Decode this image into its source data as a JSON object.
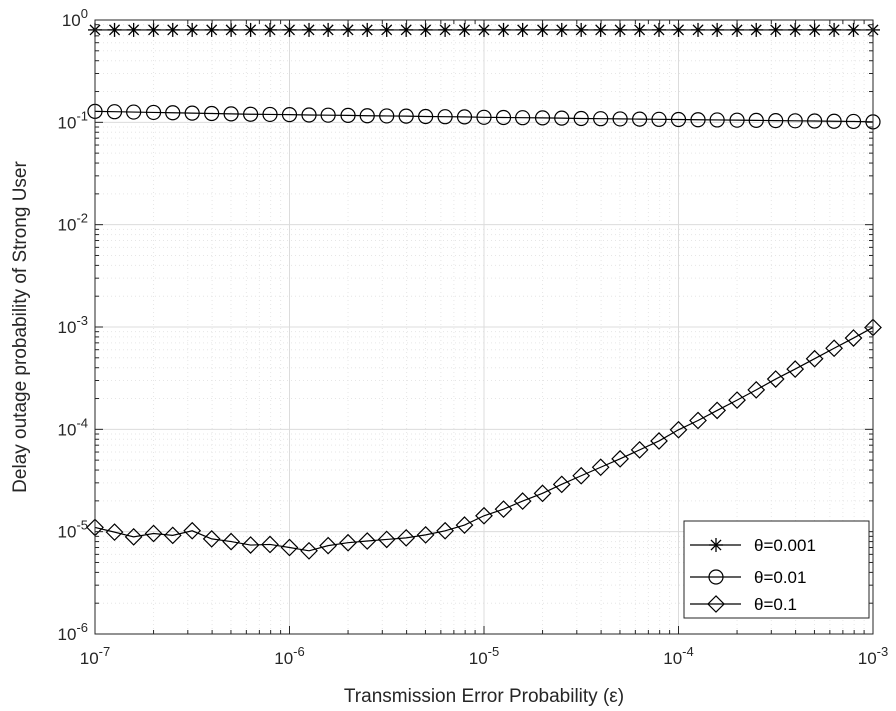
{
  "chart_data": {
    "type": "line",
    "xlabel": "Transmission Error Probability (ε)",
    "ylabel": "Delay outage probability of Strong User",
    "x_scale": "log",
    "y_scale": "log",
    "xlim": [
      1e-07,
      0.001
    ],
    "ylim": [
      1e-06,
      1
    ],
    "grid": true,
    "legend_position": "bottom-right",
    "x_ticks": [
      {
        "base": "10",
        "exp": "-7"
      },
      {
        "base": "10",
        "exp": "-6"
      },
      {
        "base": "10",
        "exp": "-5"
      },
      {
        "base": "10",
        "exp": "-4"
      },
      {
        "base": "10",
        "exp": "-3"
      }
    ],
    "y_ticks": [
      {
        "base": "10",
        "exp": "-6"
      },
      {
        "base": "10",
        "exp": "-5"
      },
      {
        "base": "10",
        "exp": "-4"
      },
      {
        "base": "10",
        "exp": "-3"
      },
      {
        "base": "10",
        "exp": "-2"
      },
      {
        "base": "10",
        "exp": "-1"
      },
      {
        "base": "10",
        "exp": "0"
      }
    ],
    "x": [
      1e-07,
      1.26e-07,
      1.58e-07,
      2e-07,
      2.51e-07,
      3.16e-07,
      3.98e-07,
      5.01e-07,
      6.31e-07,
      7.94e-07,
      1e-06,
      1.26e-06,
      1.58e-06,
      2e-06,
      2.51e-06,
      3.16e-06,
      3.98e-06,
      5.01e-06,
      6.31e-06,
      7.94e-06,
      1e-05,
      1.26e-05,
      1.58e-05,
      2e-05,
      2.51e-05,
      3.16e-05,
      3.98e-05,
      5.01e-05,
      6.31e-05,
      7.94e-05,
      0.0001,
      0.000126,
      0.000158,
      0.0002,
      0.000251,
      0.000316,
      0.000398,
      0.000501,
      0.000631,
      0.000794,
      0.001
    ],
    "series": [
      {
        "name": "θ=0.001",
        "marker": "asterisk",
        "values": [
          0.8,
          0.8,
          0.8,
          0.8,
          0.8,
          0.8,
          0.8,
          0.8,
          0.8,
          0.8,
          0.8,
          0.8,
          0.8,
          0.8,
          0.8,
          0.8,
          0.8,
          0.8,
          0.8,
          0.8,
          0.8,
          0.8,
          0.8,
          0.8,
          0.8,
          0.8,
          0.8,
          0.8,
          0.8,
          0.8,
          0.8,
          0.8,
          0.8,
          0.8,
          0.8,
          0.8,
          0.8,
          0.8,
          0.8,
          0.8,
          0.8
        ]
      },
      {
        "name": "θ=0.01",
        "marker": "circle",
        "values": [
          0.128,
          0.127,
          0.126,
          0.125,
          0.124,
          0.123,
          0.122,
          0.121,
          0.12,
          0.1195,
          0.119,
          0.118,
          0.1175,
          0.117,
          0.116,
          0.1155,
          0.115,
          0.114,
          0.1135,
          0.113,
          0.112,
          0.1115,
          0.111,
          0.1105,
          0.11,
          0.109,
          0.1085,
          0.108,
          0.1075,
          0.107,
          0.1065,
          0.106,
          0.1055,
          0.105,
          0.1045,
          0.104,
          0.1035,
          0.103,
          0.1025,
          0.102,
          0.101
        ]
      },
      {
        "name": "θ=0.1",
        "marker": "diamond",
        "values": [
          1.1e-05,
          9.9e-06,
          8.9e-06,
          9.6e-06,
          9.2e-06,
          1.02e-05,
          8.5e-06,
          8e-06,
          7.4e-06,
          7.5e-06,
          7e-06,
          6.5e-06,
          7.3e-06,
          7.8e-06,
          8.1e-06,
          8.4e-06,
          8.7e-06,
          9.3e-06,
          1.02e-05,
          1.16e-05,
          1.43e-05,
          1.66e-05,
          1.99e-05,
          2.37e-05,
          2.9e-05,
          3.52e-05,
          4.26e-05,
          5.15e-05,
          6.3e-05,
          7.7e-05,
          9.9e-05,
          0.000122,
          0.000153,
          0.000193,
          0.000243,
          0.00031,
          0.000388,
          0.00049,
          0.00062,
          0.00078,
          0.00099
        ]
      }
    ]
  }
}
